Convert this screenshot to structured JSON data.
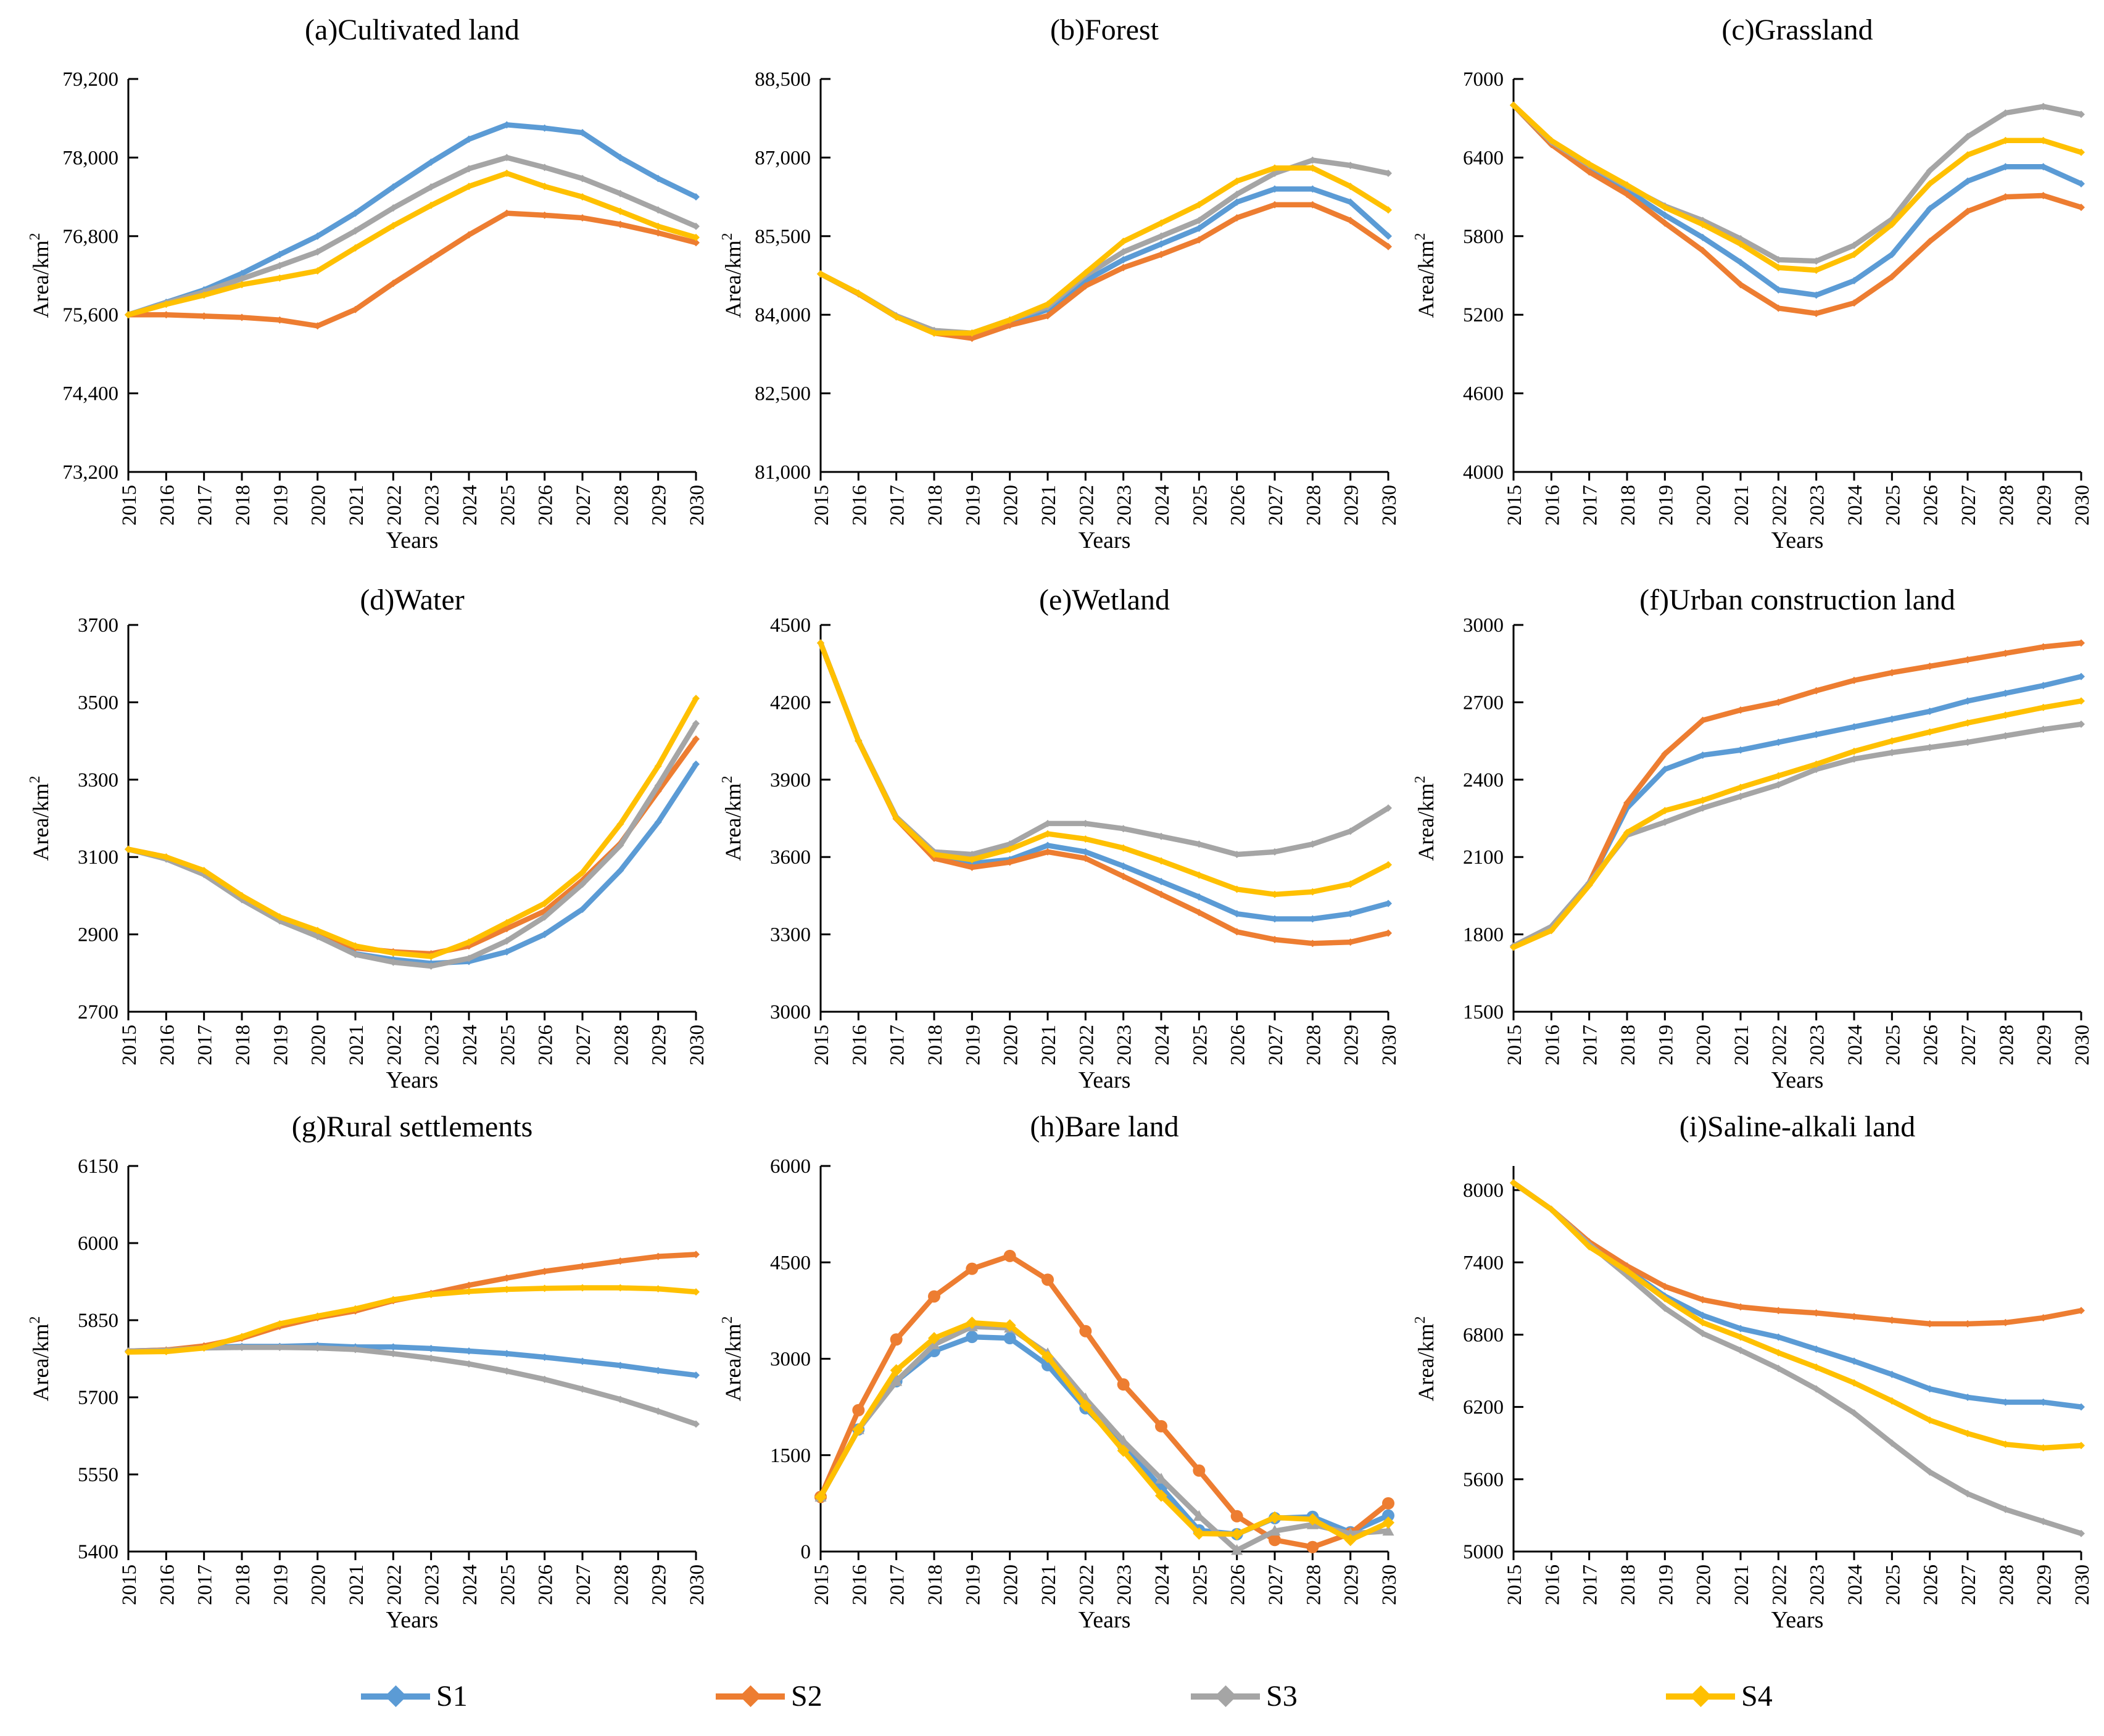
{
  "figure": {
    "xlabel": "Years",
    "ylabel": "Area/km",
    "ylabel_superscript": "2"
  },
  "x_categories": [
    "2015",
    "2016",
    "2017",
    "2018",
    "2019",
    "2020",
    "2021",
    "2022",
    "2023",
    "2024",
    "2025",
    "2026",
    "2027",
    "2028",
    "2029",
    "2030"
  ],
  "legend": {
    "items": [
      {
        "label": "S1",
        "color": "#5B9BD5"
      },
      {
        "label": "S2",
        "color": "#ED7D31"
      },
      {
        "label": "S3",
        "color": "#A5A5A5"
      },
      {
        "label": "S4",
        "color": "#FFC000"
      }
    ]
  },
  "chart_data": [
    {
      "key": "a",
      "type": "line",
      "title": "(a)Cultivated land",
      "ylim": [
        73200,
        79200
      ],
      "yticks": [
        73200,
        74400,
        75600,
        76800,
        78000,
        79200
      ],
      "ytick_labels": [
        "73,200",
        "74,400",
        "75,600",
        "76,800",
        "78,000",
        "79,200"
      ],
      "marker_size": 6,
      "series": [
        {
          "name": "S1",
          "values": [
            75600,
            75790,
            75980,
            76230,
            76520,
            76800,
            77150,
            77550,
            77930,
            78280,
            78500,
            78450,
            78380,
            78000,
            77680,
            77400
          ]
        },
        {
          "name": "S2",
          "values": [
            75600,
            75600,
            75580,
            75560,
            75520,
            75430,
            75680,
            76080,
            76450,
            76820,
            77150,
            77120,
            77080,
            76980,
            76850,
            76700
          ]
        },
        {
          "name": "S3",
          "values": [
            75600,
            75780,
            75950,
            76150,
            76350,
            76560,
            76880,
            77230,
            77550,
            77830,
            78000,
            77850,
            77680,
            77450,
            77200,
            76950
          ]
        },
        {
          "name": "S4",
          "values": [
            75600,
            75760,
            75900,
            76060,
            76160,
            76270,
            76620,
            76960,
            77270,
            77560,
            77760,
            77560,
            77400,
            77180,
            76950,
            76780
          ]
        }
      ]
    },
    {
      "key": "b",
      "type": "line",
      "title": "(b)Forest",
      "ylim": [
        81000,
        88500
      ],
      "yticks": [
        81000,
        82500,
        84000,
        85500,
        87000,
        88500
      ],
      "ytick_labels": [
        "81,000",
        "82,500",
        "84,000",
        "85,500",
        "87,000",
        "88,500"
      ],
      "marker_size": 6,
      "series": [
        {
          "name": "S1",
          "values": [
            84780,
            84400,
            83960,
            83680,
            83620,
            83850,
            84100,
            84650,
            85050,
            85350,
            85650,
            86150,
            86400,
            86400,
            86150,
            85500
          ]
        },
        {
          "name": "S2",
          "values": [
            84780,
            84400,
            83960,
            83650,
            83550,
            83800,
            83980,
            84550,
            84900,
            85150,
            85430,
            85850,
            86100,
            86100,
            85800,
            85300
          ]
        },
        {
          "name": "S3",
          "values": [
            84780,
            84410,
            83980,
            83700,
            83650,
            83900,
            84150,
            84750,
            85200,
            85500,
            85800,
            86300,
            86700,
            86950,
            86850,
            86700
          ]
        },
        {
          "name": "S4",
          "values": [
            84780,
            84410,
            83960,
            83650,
            83650,
            83900,
            84200,
            84800,
            85400,
            85750,
            86100,
            86550,
            86800,
            86800,
            86450,
            86000
          ]
        }
      ]
    },
    {
      "key": "c",
      "type": "line",
      "title": "(c)Grassland",
      "ylim": [
        4000,
        7000
      ],
      "yticks": [
        4000,
        4600,
        5200,
        5800,
        6400,
        7000
      ],
      "ytick_labels": [
        "4000",
        "4600",
        "5200",
        "5800",
        "6400",
        "7000"
      ],
      "marker_size": 6,
      "series": [
        {
          "name": "S1",
          "values": [
            6800,
            6500,
            6320,
            6150,
            5960,
            5790,
            5600,
            5390,
            5350,
            5460,
            5660,
            6010,
            6220,
            6330,
            6330,
            6200
          ]
        },
        {
          "name": "S2",
          "values": [
            6800,
            6500,
            6290,
            6120,
            5900,
            5690,
            5430,
            5250,
            5210,
            5290,
            5490,
            5760,
            5990,
            6100,
            6110,
            6020
          ]
        },
        {
          "name": "S3",
          "values": [
            6800,
            6520,
            6340,
            6180,
            6030,
            5920,
            5780,
            5620,
            5610,
            5730,
            5930,
            6300,
            6560,
            6740,
            6790,
            6730
          ]
        },
        {
          "name": "S4",
          "values": [
            6800,
            6530,
            6350,
            6190,
            6020,
            5890,
            5740,
            5560,
            5540,
            5660,
            5890,
            6200,
            6420,
            6530,
            6530,
            6440
          ]
        }
      ]
    },
    {
      "key": "d",
      "type": "line",
      "title": "(d)Water",
      "ylim": [
        2700,
        3700
      ],
      "yticks": [
        2700,
        2900,
        3100,
        3300,
        3500,
        3700
      ],
      "ytick_labels": [
        "2700",
        "2900",
        "3100",
        "3300",
        "3500",
        "3700"
      ],
      "marker_size": 6,
      "series": [
        {
          "name": "S1",
          "values": [
            3120,
            3095,
            3055,
            2990,
            2935,
            2895,
            2850,
            2835,
            2825,
            2830,
            2855,
            2900,
            2965,
            3065,
            3190,
            3340
          ]
        },
        {
          "name": "S2",
          "values": [
            3120,
            3100,
            3060,
            2995,
            2940,
            2905,
            2865,
            2855,
            2850,
            2870,
            2915,
            2960,
            3040,
            3135,
            3270,
            3405
          ]
        },
        {
          "name": "S3",
          "values": [
            3120,
            3095,
            3055,
            2990,
            2935,
            2895,
            2848,
            2828,
            2818,
            2838,
            2883,
            2945,
            3030,
            3130,
            3285,
            3445
          ]
        },
        {
          "name": "S4",
          "values": [
            3120,
            3100,
            3065,
            3000,
            2945,
            2910,
            2870,
            2852,
            2843,
            2880,
            2930,
            2980,
            3060,
            3185,
            3335,
            3510
          ]
        }
      ]
    },
    {
      "key": "e",
      "type": "line",
      "title": "(e)Wetland",
      "ylim": [
        3000,
        4500
      ],
      "yticks": [
        3000,
        3300,
        3600,
        3900,
        4200,
        4500
      ],
      "ytick_labels": [
        "3000",
        "3300",
        "3600",
        "3900",
        "4200",
        "4500"
      ],
      "marker_size": 6,
      "series": [
        {
          "name": "S1",
          "values": [
            4430,
            4050,
            3750,
            3600,
            3575,
            3590,
            3645,
            3620,
            3565,
            3505,
            3445,
            3380,
            3360,
            3360,
            3380,
            3420
          ]
        },
        {
          "name": "S2",
          "values": [
            4430,
            4050,
            3748,
            3595,
            3560,
            3580,
            3620,
            3595,
            3525,
            3455,
            3385,
            3310,
            3280,
            3265,
            3270,
            3305
          ]
        },
        {
          "name": "S3",
          "values": [
            4430,
            4052,
            3755,
            3620,
            3610,
            3650,
            3730,
            3730,
            3710,
            3680,
            3650,
            3610,
            3620,
            3650,
            3700,
            3790
          ]
        },
        {
          "name": "S4",
          "values": [
            4430,
            4050,
            3750,
            3610,
            3590,
            3630,
            3690,
            3670,
            3635,
            3585,
            3530,
            3475,
            3455,
            3465,
            3495,
            3570
          ]
        }
      ]
    },
    {
      "key": "f",
      "type": "line",
      "title": "(f)Urban construction land",
      "ylim": [
        1500,
        3000
      ],
      "yticks": [
        1500,
        1800,
        2100,
        2400,
        2700,
        3000
      ],
      "ytick_labels": [
        "1500",
        "1800",
        "2100",
        "2400",
        "2700",
        "3000"
      ],
      "marker_size": 6,
      "series": [
        {
          "name": "S1",
          "values": [
            1755,
            1830,
            2000,
            2290,
            2440,
            2495,
            2515,
            2545,
            2575,
            2605,
            2635,
            2665,
            2705,
            2735,
            2765,
            2800
          ]
        },
        {
          "name": "S2",
          "values": [
            1755,
            1820,
            2000,
            2310,
            2500,
            2630,
            2670,
            2700,
            2745,
            2785,
            2815,
            2840,
            2865,
            2890,
            2915,
            2930
          ]
        },
        {
          "name": "S3",
          "values": [
            1755,
            1830,
            2000,
            2185,
            2235,
            2290,
            2335,
            2380,
            2440,
            2480,
            2505,
            2525,
            2545,
            2570,
            2595,
            2615
          ]
        },
        {
          "name": "S4",
          "values": [
            1750,
            1815,
            1990,
            2195,
            2280,
            2320,
            2370,
            2415,
            2460,
            2510,
            2550,
            2585,
            2620,
            2650,
            2680,
            2705
          ]
        }
      ]
    },
    {
      "key": "g",
      "type": "line",
      "title": "(g)Rural settlements",
      "ylim": [
        5400,
        6150
      ],
      "yticks": [
        5400,
        5550,
        5700,
        5850,
        6000,
        6150
      ],
      "ytick_labels": [
        "5400",
        "5550",
        "5700",
        "5850",
        "6000",
        "6150"
      ],
      "marker_size": 6,
      "series": [
        {
          "name": "S1",
          "values": [
            5790,
            5792,
            5797,
            5799,
            5799,
            5801,
            5798,
            5798,
            5795,
            5790,
            5785,
            5778,
            5770,
            5762,
            5752,
            5743
          ]
        },
        {
          "name": "S2",
          "values": [
            5790,
            5792,
            5800,
            5815,
            5838,
            5855,
            5868,
            5888,
            5902,
            5918,
            5932,
            5945,
            5955,
            5965,
            5974,
            5978
          ]
        },
        {
          "name": "S3",
          "values": [
            5790,
            5791,
            5796,
            5797,
            5797,
            5796,
            5793,
            5785,
            5776,
            5765,
            5751,
            5735,
            5716,
            5696,
            5673,
            5648
          ]
        },
        {
          "name": "S4",
          "values": [
            5788,
            5789,
            5796,
            5818,
            5843,
            5858,
            5872,
            5890,
            5900,
            5906,
            5910,
            5912,
            5913,
            5913,
            5911,
            5905
          ]
        }
      ]
    },
    {
      "key": "h",
      "type": "line",
      "title": "(h)Bare land",
      "ylim": [
        0,
        6000
      ],
      "yticks": [
        0,
        1500,
        3000,
        4500,
        6000
      ],
      "ytick_labels": [
        "0",
        "1500",
        "3000",
        "4500",
        "6000"
      ],
      "marker_size": 10,
      "marker_shapes": {
        "S1": "circle",
        "S2": "circle",
        "S3": "triangle",
        "S4": "diamond"
      },
      "series": [
        {
          "name": "S1",
          "values": [
            850,
            1900,
            2650,
            3120,
            3340,
            3320,
            2900,
            2230,
            1640,
            1000,
            330,
            270,
            520,
            540,
            300,
            560
          ]
        },
        {
          "name": "S2",
          "values": [
            850,
            2200,
            3300,
            3970,
            4400,
            4600,
            4230,
            3430,
            2600,
            1950,
            1260,
            550,
            180,
            70,
            280,
            750
          ]
        },
        {
          "name": "S3",
          "values": [
            850,
            1900,
            2650,
            3220,
            3500,
            3480,
            3080,
            2380,
            1720,
            1130,
            550,
            20,
            320,
            420,
            280,
            320
          ]
        },
        {
          "name": "S4",
          "values": [
            850,
            1900,
            2820,
            3320,
            3560,
            3520,
            3030,
            2270,
            1570,
            870,
            280,
            270,
            530,
            500,
            180,
            450
          ]
        }
      ]
    },
    {
      "key": "i",
      "type": "line",
      "title": "(i)Saline-alkali land",
      "ylim": [
        5000,
        8200
      ],
      "yticks": [
        5000,
        5600,
        6200,
        6800,
        7400,
        8000
      ],
      "ytick_labels": [
        "5000",
        "5600",
        "6200",
        "6800",
        "7400",
        "8000"
      ],
      "marker_size": 6,
      "series": [
        {
          "name": "S1",
          "values": [
            8060,
            7840,
            7560,
            7340,
            7120,
            6960,
            6850,
            6780,
            6680,
            6580,
            6470,
            6350,
            6280,
            6240,
            6240,
            6200
          ]
        },
        {
          "name": "S2",
          "values": [
            8060,
            7840,
            7570,
            7370,
            7200,
            7090,
            7030,
            7000,
            6980,
            6950,
            6920,
            6890,
            6890,
            6900,
            6940,
            7000
          ]
        },
        {
          "name": "S3",
          "values": [
            8060,
            7840,
            7550,
            7290,
            7020,
            6810,
            6670,
            6520,
            6350,
            6150,
            5900,
            5660,
            5480,
            5350,
            5250,
            5150
          ]
        },
        {
          "name": "S4",
          "values": [
            8060,
            7840,
            7530,
            7330,
            7100,
            6900,
            6780,
            6650,
            6530,
            6400,
            6250,
            6090,
            5980,
            5890,
            5860,
            5880
          ]
        }
      ]
    }
  ]
}
